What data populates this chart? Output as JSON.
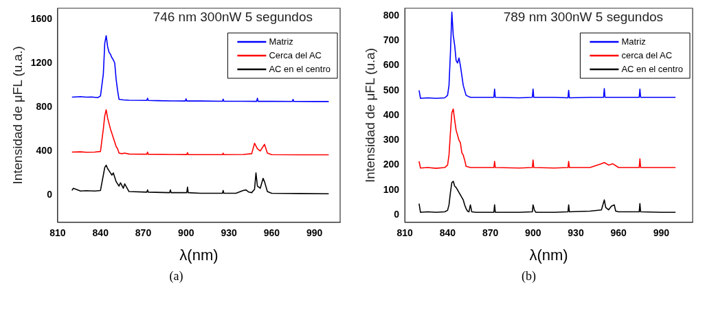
{
  "chart_data": [
    {
      "type": "line",
      "title": "746 nm 300nW 5 segundos",
      "xlabel": "λ(nm)",
      "ylabel": "Intensidad de μFL (u.a.)",
      "annotations": [
        "(a)"
      ],
      "xlim": [
        810,
        1008
      ],
      "xticks": [
        810,
        840,
        870,
        900,
        930,
        960,
        990
      ],
      "ylim": [
        -250,
        1700
      ],
      "yticks": [
        0,
        400,
        800,
        1200,
        1600
      ],
      "grid": false,
      "legend": "top right",
      "marker": "none",
      "line_style": "solid",
      "series": [
        {
          "name": "Matriz",
          "color": "#0000ff",
          "x": [
            820,
            826,
            830,
            834,
            838,
            840,
            842,
            843,
            844,
            845,
            846,
            847,
            848,
            849,
            850,
            851,
            852,
            853,
            856,
            860,
            872.5,
            873,
            873.5,
            880,
            890,
            899.5,
            900,
            900.5,
            910,
            925.5,
            926,
            926.5,
            940,
            949.5,
            950,
            950.5,
            960,
            974.5,
            975,
            975.5,
            990,
            1000
          ],
          "values": [
            890,
            895,
            890,
            892,
            885,
            900,
            1100,
            1380,
            1450,
            1350,
            1300,
            1280,
            1250,
            1230,
            1200,
            1050,
            950,
            870,
            865,
            862,
            860,
            880,
            860,
            858,
            856,
            855,
            875,
            855,
            855,
            853,
            872,
            853,
            853,
            852,
            880,
            852,
            852,
            851,
            870,
            851,
            850,
            850
          ]
        },
        {
          "name": "Cerca del AC",
          "color": "#ff0000",
          "x": [
            820,
            826,
            830,
            836,
            840,
            842,
            843,
            844,
            845,
            846,
            847,
            848,
            849,
            850,
            851,
            852,
            853,
            855,
            857,
            860,
            872.5,
            873,
            873.5,
            890,
            900.5,
            901,
            901.5,
            925.5,
            926,
            926.5,
            940,
            946,
            948,
            950,
            952,
            955,
            957,
            960,
            980,
            1000
          ],
          "values": [
            390,
            392,
            388,
            390,
            395,
            600,
            720,
            775,
            700,
            650,
            600,
            560,
            520,
            480,
            440,
            420,
            380,
            375,
            380,
            372,
            370,
            390,
            370,
            368,
            367,
            385,
            367,
            366,
            380,
            366,
            368,
            375,
            470,
            420,
            400,
            460,
            380,
            366,
            365,
            365
          ]
        },
        {
          "name": "AC en el centro",
          "color": "#000000",
          "x": [
            820,
            821,
            826,
            830,
            836,
            840,
            842,
            843,
            844,
            845,
            846,
            847,
            848,
            849,
            850,
            851,
            852,
            853,
            854,
            856,
            857,
            860,
            872.5,
            873,
            873.5,
            888.5,
            889,
            889.5,
            900.5,
            901,
            901.5,
            910,
            925.5,
            926,
            926.5,
            935,
            940,
            942,
            944,
            946,
            948,
            949,
            950,
            952,
            954,
            955,
            957,
            960,
            980,
            1000
          ],
          "values": [
            40,
            60,
            35,
            38,
            35,
            40,
            180,
            250,
            270,
            240,
            220,
            200,
            180,
            200,
            160,
            120,
            100,
            80,
            110,
            60,
            100,
            30,
            25,
            45,
            25,
            20,
            45,
            20,
            20,
            70,
            20,
            15,
            15,
            40,
            15,
            15,
            40,
            45,
            25,
            20,
            50,
            200,
            80,
            60,
            150,
            120,
            30,
            15,
            12,
            10
          ]
        }
      ]
    },
    {
      "type": "line",
      "title": "789 nm 300nW 5 segundos",
      "xlabel": "λ(nm)",
      "ylabel": "Intensidad de μFL (u.a)",
      "annotations": [
        "(b)"
      ],
      "xlim": [
        810,
        1012
      ],
      "xticks": [
        810,
        840,
        870,
        900,
        930,
        960,
        990
      ],
      "ylim": [
        -30,
        830
      ],
      "yticks": [
        0,
        100,
        200,
        300,
        400,
        500,
        600,
        700,
        800
      ],
      "grid": false,
      "legend": "top right",
      "marker": "none",
      "line_style": "solid",
      "series": [
        {
          "name": "Matriz",
          "color": "#0000ff",
          "x": [
            820,
            821,
            826,
            832,
            838,
            840,
            841,
            842,
            843,
            844,
            845,
            846,
            847,
            848,
            849,
            850,
            851,
            852,
            853,
            856,
            860,
            872.5,
            873,
            873.5,
            890,
            899.5,
            900,
            900.5,
            915,
            924.5,
            925,
            925.5,
            940,
            949.5,
            950,
            950.5,
            960,
            974.5,
            975,
            975.5,
            990,
            1000
          ],
          "values": [
            500,
            468,
            470,
            468,
            470,
            480,
            520,
            650,
            815,
            720,
            680,
            620,
            610,
            630,
            600,
            560,
            520,
            500,
            480,
            472,
            472,
            472,
            505,
            472,
            470,
            472,
            505,
            472,
            472,
            470,
            500,
            470,
            472,
            472,
            507,
            472,
            472,
            472,
            505,
            472,
            472,
            472
          ]
        },
        {
          "name": "cerca del AC",
          "color": "#ff0000",
          "x": [
            820,
            821,
            826,
            832,
            838,
            840,
            841,
            842,
            843,
            844,
            845,
            846,
            847,
            848,
            849,
            850,
            851,
            852,
            853,
            856,
            860,
            872.5,
            873,
            873.5,
            890,
            899.5,
            900,
            900.5,
            915,
            924.5,
            925,
            925.5,
            940,
            948,
            950,
            953,
            956,
            960,
            974.5,
            975,
            975.5,
            990,
            1000
          ],
          "values": [
            215,
            188,
            190,
            187,
            190,
            200,
            240,
            330,
            410,
            425,
            380,
            340,
            320,
            300,
            290,
            250,
            240,
            220,
            195,
            190,
            190,
            190,
            215,
            190,
            188,
            190,
            220,
            190,
            188,
            190,
            215,
            190,
            190,
            205,
            210,
            200,
            205,
            190,
            190,
            225,
            190,
            190,
            190
          ]
        },
        {
          "name": "AC en el centro",
          "color": "#000000",
          "x": [
            820,
            821,
            826,
            832,
            838,
            840,
            841,
            842,
            843,
            844,
            845,
            846,
            847,
            848,
            849,
            850,
            851,
            852,
            853,
            854,
            855,
            856,
            857,
            860,
            872.5,
            873,
            873.5,
            890,
            899.5,
            900,
            901,
            902,
            915,
            924.5,
            925,
            925.5,
            940,
            948,
            950,
            951,
            953,
            955,
            957,
            958,
            960,
            974.5,
            975,
            975.5,
            990,
            1000
          ],
          "values": [
            45,
            10,
            12,
            10,
            12,
            18,
            40,
            90,
            130,
            135,
            115,
            110,
            100,
            90,
            80,
            70,
            60,
            40,
            25,
            15,
            12,
            40,
            12,
            10,
            10,
            40,
            10,
            10,
            12,
            40,
            18,
            10,
            10,
            12,
            40,
            12,
            15,
            20,
            60,
            30,
            20,
            35,
            40,
            15,
            12,
            12,
            45,
            12,
            10,
            10
          ]
        }
      ]
    }
  ]
}
